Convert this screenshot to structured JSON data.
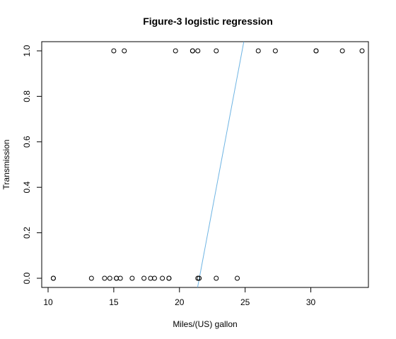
{
  "chart_data": {
    "type": "scatter",
    "title": "Figure-3 logistic regression",
    "xlabel": "Miles/(US) gallon",
    "ylabel": "Transmission",
    "xlim": [
      10,
      33.9
    ],
    "ylim": [
      0,
      1
    ],
    "x_ticks": [
      "10",
      "15",
      "20",
      "25",
      "30"
    ],
    "y_ticks": [
      "0.0",
      "0.2",
      "0.4",
      "0.6",
      "0.8",
      "1.0"
    ],
    "grid": false,
    "point_color": "#000000",
    "series": [
      {
        "points": [
          [
            21.0,
            1
          ],
          [
            21.0,
            1
          ],
          [
            22.8,
            1
          ],
          [
            21.4,
            0
          ],
          [
            18.7,
            0
          ],
          [
            18.1,
            0
          ],
          [
            14.3,
            0
          ],
          [
            24.4,
            0
          ],
          [
            22.8,
            0
          ],
          [
            19.2,
            0
          ],
          [
            17.8,
            0
          ],
          [
            16.4,
            0
          ],
          [
            17.3,
            0
          ],
          [
            15.2,
            0
          ],
          [
            10.4,
            0
          ],
          [
            10.4,
            0
          ],
          [
            14.7,
            0
          ],
          [
            32.4,
            1
          ],
          [
            30.4,
            1
          ],
          [
            33.9,
            1
          ],
          [
            21.5,
            0
          ],
          [
            15.5,
            0
          ],
          [
            15.2,
            0
          ],
          [
            13.3,
            0
          ],
          [
            19.2,
            0
          ],
          [
            27.3,
            1
          ],
          [
            26.0,
            1
          ],
          [
            30.4,
            1
          ],
          [
            15.8,
            1
          ],
          [
            19.7,
            1
          ],
          [
            15.0,
            1
          ],
          [
            21.4,
            1
          ]
        ]
      }
    ],
    "fit_line": {
      "color": "#6EB4E3",
      "intercept": -6.604,
      "slope": 0.307
    }
  }
}
